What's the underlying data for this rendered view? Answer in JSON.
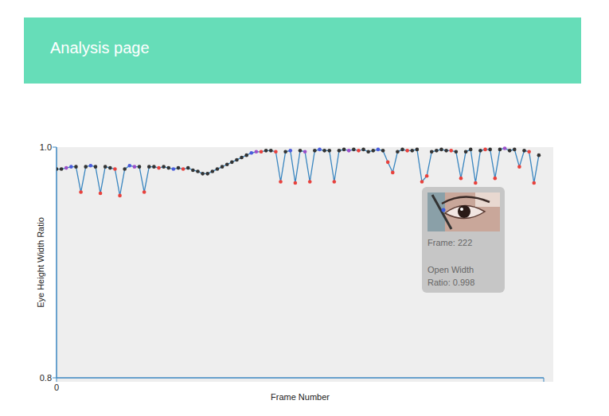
{
  "header": {
    "title": "Analysis page"
  },
  "chart_data": {
    "type": "line",
    "x_label": "Frame Number",
    "y_label": "Eye Height Width Ratio",
    "xlim": [
      0,
      300
    ],
    "xticks": [
      0
    ],
    "ylim": [
      0.8,
      1.0
    ],
    "yticks": [
      0.8,
      {
        "value": 1.0,
        "label": "1.0"
      }
    ],
    "color": "#3a86c0",
    "marker": "circle",
    "grid": false,
    "annotations": [
      "Frame: 222",
      "Open Width Ratio: 0.998"
    ],
    "x": [
      0,
      3,
      6,
      9,
      12,
      15,
      18,
      21,
      24,
      27,
      30,
      33,
      36,
      39,
      42,
      45,
      48,
      51,
      54,
      57,
      60,
      63,
      66,
      69,
      72,
      75,
      78,
      81,
      84,
      87,
      90,
      93,
      96,
      99,
      102,
      105,
      108,
      111,
      114,
      117,
      120,
      123,
      126,
      129,
      132,
      135,
      138,
      141,
      144,
      147,
      150,
      153,
      156,
      159,
      162,
      165,
      168,
      171,
      174,
      177,
      180,
      183,
      186,
      189,
      192,
      195,
      198,
      201,
      204,
      207,
      210,
      213,
      216,
      219,
      222,
      225,
      228,
      231,
      234,
      237,
      240,
      243,
      246,
      249,
      252,
      255,
      258,
      261,
      264,
      267,
      270,
      273,
      276,
      279,
      282,
      285,
      288,
      291,
      294,
      297
    ],
    "values": [
      0.981,
      0.981,
      0.982,
      0.983,
      0.983,
      0.961,
      0.983,
      0.984,
      0.983,
      0.96,
      0.983,
      0.982,
      0.981,
      0.958,
      0.981,
      0.984,
      0.983,
      0.983,
      0.961,
      0.983,
      0.983,
      0.982,
      0.983,
      0.982,
      0.981,
      0.982,
      0.981,
      0.982,
      0.98,
      0.979,
      0.977,
      0.977,
      0.979,
      0.981,
      0.983,
      0.985,
      0.987,
      0.989,
      0.991,
      0.993,
      0.995,
      0.996,
      0.996,
      0.997,
      0.997,
      0.996,
      0.97,
      0.996,
      0.997,
      0.969,
      0.997,
      0.996,
      0.97,
      0.997,
      0.998,
      0.997,
      0.997,
      0.97,
      0.997,
      0.998,
      0.997,
      0.998,
      0.997,
      0.998,
      0.996,
      0.997,
      0.998,
      0.997,
      0.987,
      0.978,
      0.996,
      0.998,
      0.997,
      0.997,
      0.998,
      0.97,
      0.975,
      0.996,
      0.997,
      0.998,
      0.997,
      0.997,
      0.996,
      0.973,
      0.996,
      0.998,
      0.969,
      0.997,
      0.998,
      0.998,
      0.973,
      0.998,
      0.999,
      0.997,
      0.998,
      0.983,
      0.997,
      0.996,
      0.969,
      0.993
    ],
    "colors": [
      "#333333",
      "#333333",
      "#9b4fc9",
      "#4a5bdc",
      "#333333",
      "#e8413c",
      "#333333",
      "#4a5bdc",
      "#333333",
      "#e8413c",
      "#333333",
      "#333333",
      "#e8413c",
      "#e8413c",
      "#333333",
      "#4a5bdc",
      "#9b4fc9",
      "#333333",
      "#e8413c",
      "#333333",
      "#333333",
      "#e8413c",
      "#333333",
      "#333333",
      "#4a5bdc",
      "#333333",
      "#e8413c",
      "#333333",
      "#333333",
      "#333333",
      "#333333",
      "#333333",
      "#333333",
      "#333333",
      "#333333",
      "#333333",
      "#333333",
      "#333333",
      "#333333",
      "#333333",
      "#4a5bdc",
      "#9b4fc9",
      "#e8413c",
      "#333333",
      "#333333",
      "#e8413c",
      "#e8413c",
      "#333333",
      "#4a5bdc",
      "#e8413c",
      "#333333",
      "#9b4fc9",
      "#e8413c",
      "#333333",
      "#4a5bdc",
      "#333333",
      "#333333",
      "#e8413c",
      "#333333",
      "#333333",
      "#9b4fc9",
      "#333333",
      "#e8413c",
      "#333333",
      "#333333",
      "#333333",
      "#4a5bdc",
      "#333333",
      "#e8413c",
      "#e8413c",
      "#333333",
      "#333333",
      "#e8413c",
      "#333333",
      "#333333",
      "#e8413c",
      "#e8413c",
      "#333333",
      "#333333",
      "#333333",
      "#333333",
      "#e8413c",
      "#333333",
      "#e8413c",
      "#333333",
      "#333333",
      "#e8413c",
      "#333333",
      "#e8413c",
      "#333333",
      "#e8413c",
      "#333333",
      "#9b4fc9",
      "#333333",
      "#333333",
      "#e8413c",
      "#333333",
      "#e8413c",
      "#e8413c",
      "#333333"
    ]
  }
}
